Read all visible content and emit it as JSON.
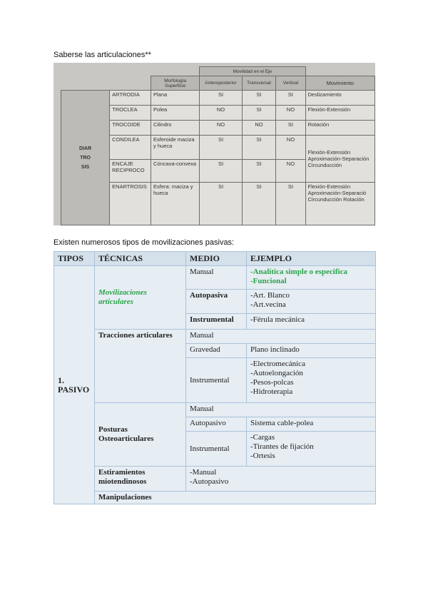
{
  "caption1": "Saberse las articulaciones**",
  "caption2": "Existen numerosos tipos de movilizaciones pasivas:",
  "table1": {
    "group": "DIARTROSIS",
    "headers": {
      "morfologia": "Morfología Superficie",
      "movilidad": "Movilidad en el Eje",
      "antero": "Anteroposterior",
      "transversal": "Transversal",
      "vertical": "Vertical",
      "movimiento": "Movimiento"
    },
    "rows": [
      {
        "name": "ARTRODIA",
        "morf": "Plana",
        "ap": "SI",
        "tr": "SI",
        "ve": "SI",
        "mov": "Deslizamiento"
      },
      {
        "name": "TROCLEA",
        "morf": "Polea",
        "ap": "NO",
        "tr": "SI",
        "ve": "NO",
        "mov": "Flexión-Extensión"
      },
      {
        "name": "TROCOIDE",
        "morf": "Cilindro",
        "ap": "NO",
        "tr": "NO",
        "ve": "SI",
        "mov": "Rotación"
      },
      {
        "name": "CONDILEA",
        "morf": "Esferoide maciza y hueca",
        "ap": "SI",
        "tr": "SI",
        "ve": "NO",
        "mov": "Flexión-Extensión Aproximación-Separación Circunducción"
      },
      {
        "name": "ENCAJE RECIPROCO",
        "morf": "Cóncava-convexa",
        "ap": "SI",
        "tr": "SI",
        "ve": "NO"
      },
      {
        "name": "ENARTROSIS",
        "morf": "Esfera: maciza y hueca",
        "ap": "SI",
        "tr": "SI",
        "ve": "SI",
        "mov": "Flexión-Extensión Aproximación-Separació Circunducción Rotación"
      }
    ]
  },
  "table2": {
    "headers": [
      "TIPOS",
      "TÉCNICAS",
      "MEDIO",
      "EJEMPLO"
    ],
    "tipo": "1. PASIVO",
    "tecnicas": [
      "Movilizaciones articulares",
      "Tracciones articulares",
      "Posturas Osteoarticulares",
      "Estiramientos miotendinosos",
      "Manipulaciones"
    ],
    "medios": [
      "Manual",
      "Autopasiva",
      "Instrumental",
      "Manual",
      "Gravedad",
      "Instrumental",
      "Manual",
      "Autopasivo",
      "Instrumental",
      "-Manual",
      "-Autopasivo"
    ],
    "ejemplos": [
      "-Analítica simple o especifica",
      "-Funcional",
      "-Art. Blanco",
      "-Art.vecina",
      "-Férula mecánica",
      "Plano inclinado",
      "-Electromecánica",
      "-Autoelongación",
      "-Pesos-polcas",
      "-Hidroterapia",
      "Sistema cable-polea",
      "-Cargas",
      "-Tirantes de fijación",
      "-Ortesis"
    ],
    "accent": "#2aa34a"
  }
}
